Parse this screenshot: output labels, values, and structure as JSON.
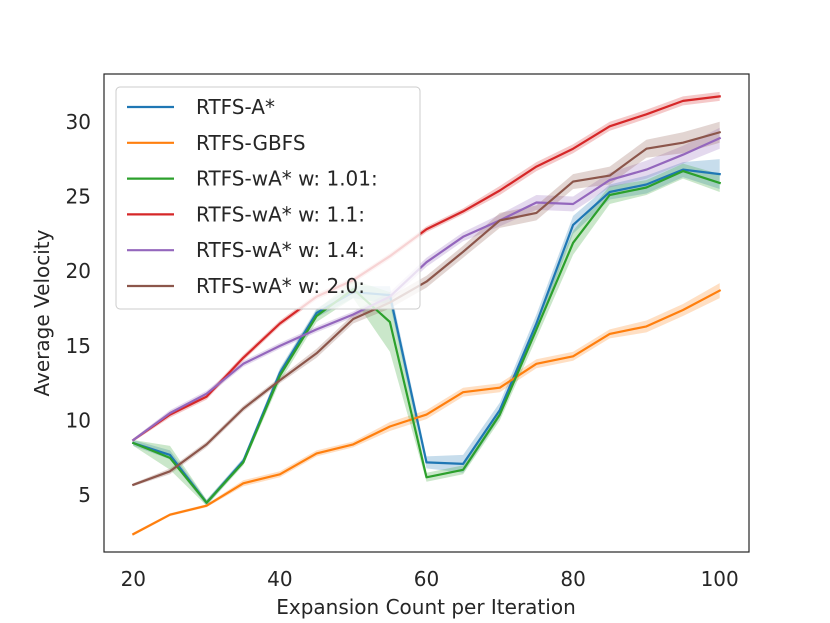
{
  "chart_data": {
    "type": "line",
    "title": "",
    "xlabel": "Expansion Count per Iteration",
    "ylabel": "Average Velocity",
    "xlim": [
      16,
      104
    ],
    "ylim": [
      1.2,
      33.2
    ],
    "xticks": [
      20,
      40,
      60,
      80,
      100
    ],
    "yticks": [
      5,
      10,
      15,
      20,
      25,
      30
    ],
    "grid": false,
    "legend_position": "top-left",
    "x": [
      20,
      25,
      30,
      35,
      40,
      45,
      50,
      55,
      60,
      65,
      70,
      75,
      80,
      85,
      90,
      95,
      100
    ],
    "series": [
      {
        "name": "RTFS-A*",
        "color": "#1f77b4",
        "values": [
          8.5,
          7.7,
          4.5,
          7.3,
          13.2,
          17.2,
          18.6,
          18.4,
          7.2,
          7.1,
          10.7,
          16.5,
          23.1,
          25.3,
          25.8,
          26.8,
          26.5
        ],
        "band": [
          0.2,
          0.3,
          0.2,
          0.2,
          0.3,
          0.3,
          0.4,
          0.6,
          0.4,
          0.6,
          0.5,
          0.6,
          0.6,
          0.5,
          0.6,
          0.5,
          1.0
        ]
      },
      {
        "name": "RTFS-GBFS",
        "color": "#ff7f0e",
        "values": [
          2.4,
          3.7,
          4.3,
          5.8,
          6.4,
          7.8,
          8.4,
          9.6,
          10.4,
          11.9,
          12.2,
          13.8,
          14.3,
          15.8,
          16.3,
          17.4,
          18.7
        ],
        "band": [
          0.1,
          0.1,
          0.1,
          0.2,
          0.2,
          0.2,
          0.2,
          0.3,
          0.3,
          0.3,
          0.3,
          0.3,
          0.3,
          0.3,
          0.4,
          0.4,
          0.5
        ]
      },
      {
        "name": "RTFS-wA* w: 1.01:",
        "color": "#2ca02c",
        "values": [
          8.5,
          7.5,
          4.5,
          7.2,
          13.0,
          17.0,
          18.8,
          16.6,
          6.2,
          6.7,
          10.4,
          16.1,
          21.9,
          25.1,
          25.6,
          26.7,
          25.9
        ],
        "band": [
          0.2,
          0.8,
          0.2,
          0.2,
          0.4,
          0.4,
          0.6,
          2.0,
          0.3,
          0.3,
          0.4,
          0.6,
          0.8,
          0.6,
          0.5,
          0.5,
          0.6
        ]
      },
      {
        "name": "RTFS-wA* w: 1.1:",
        "color": "#d62728",
        "values": [
          8.7,
          10.4,
          11.6,
          14.2,
          16.5,
          18.3,
          19.4,
          21.0,
          22.8,
          24.0,
          25.4,
          27.0,
          28.2,
          29.7,
          30.5,
          31.4,
          31.7
        ],
        "band": [
          0.1,
          0.2,
          0.2,
          0.2,
          0.2,
          0.2,
          0.2,
          0.2,
          0.2,
          0.2,
          0.3,
          0.3,
          0.3,
          0.3,
          0.3,
          0.3,
          0.3
        ]
      },
      {
        "name": "RTFS-wA* w: 1.4:",
        "color": "#9467bd",
        "values": [
          8.7,
          10.5,
          11.8,
          13.8,
          15.0,
          16.1,
          17.1,
          18.3,
          20.6,
          22.3,
          23.4,
          24.6,
          24.5,
          26.1,
          26.8,
          27.8,
          28.9
        ],
        "band": [
          0.1,
          0.2,
          0.2,
          0.2,
          0.2,
          0.2,
          0.2,
          0.3,
          0.3,
          0.3,
          0.4,
          0.5,
          0.5,
          0.5,
          0.6,
          0.6,
          0.7
        ]
      },
      {
        "name": "RTFS-wA* w: 2.0:",
        "color": "#8c564b",
        "values": [
          5.7,
          6.6,
          8.4,
          10.8,
          12.7,
          14.5,
          16.8,
          17.9,
          19.3,
          21.3,
          23.4,
          23.9,
          26.0,
          26.4,
          28.2,
          28.6,
          29.3
        ],
        "band": [
          0.1,
          0.2,
          0.2,
          0.2,
          0.2,
          0.3,
          0.3,
          0.4,
          0.4,
          0.4,
          0.5,
          0.5,
          0.5,
          0.6,
          0.6,
          0.7,
          0.7
        ]
      }
    ]
  }
}
